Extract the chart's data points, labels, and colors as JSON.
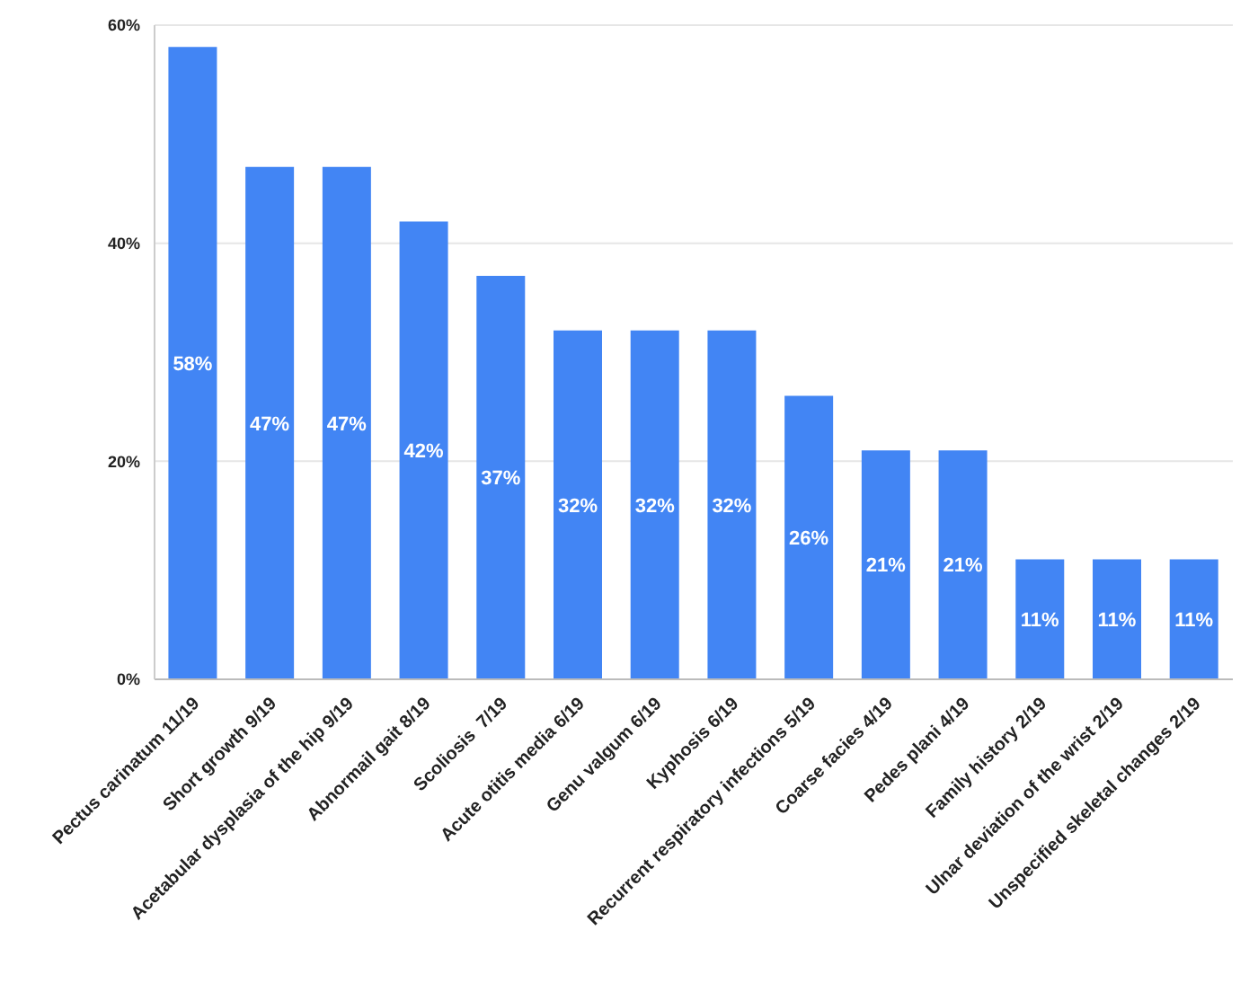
{
  "chart_data": {
    "type": "bar",
    "categories": [
      "Pectus carinatum 11/19",
      "Short growth 9/19",
      "Acetabular dysplasia of the hip 9/19",
      "Abnormail gait 8/19",
      "Scoliosis  7/19",
      "Acute otitis media 6/19",
      "Genu valgum 6/19",
      "Kyphosis 6/19",
      "Recurrent respiratory infections 5/19",
      "Coarse facies 4/19",
      "Pedes plani 4/19",
      "Family history 2/19",
      "Ulnar deviation of the wrist 2/19",
      "Unspecified skeletal changes 2/19"
    ],
    "values": [
      58,
      47,
      47,
      42,
      37,
      32,
      32,
      32,
      26,
      21,
      21,
      11,
      11,
      11
    ],
    "value_labels": [
      "58%",
      "47%",
      "47%",
      "42%",
      "37%",
      "32%",
      "32%",
      "32%",
      "26%",
      "21%",
      "21%",
      "11%",
      "11%",
      "11%"
    ],
    "color": "#4285f4",
    "ylim": [
      0,
      60
    ],
    "yticks": [
      {
        "value": 0,
        "label": "0%"
      },
      {
        "value": 20,
        "label": "20%"
      },
      {
        "value": 40,
        "label": "40%"
      },
      {
        "value": 60,
        "label": "60%"
      }
    ],
    "grid": "y"
  }
}
